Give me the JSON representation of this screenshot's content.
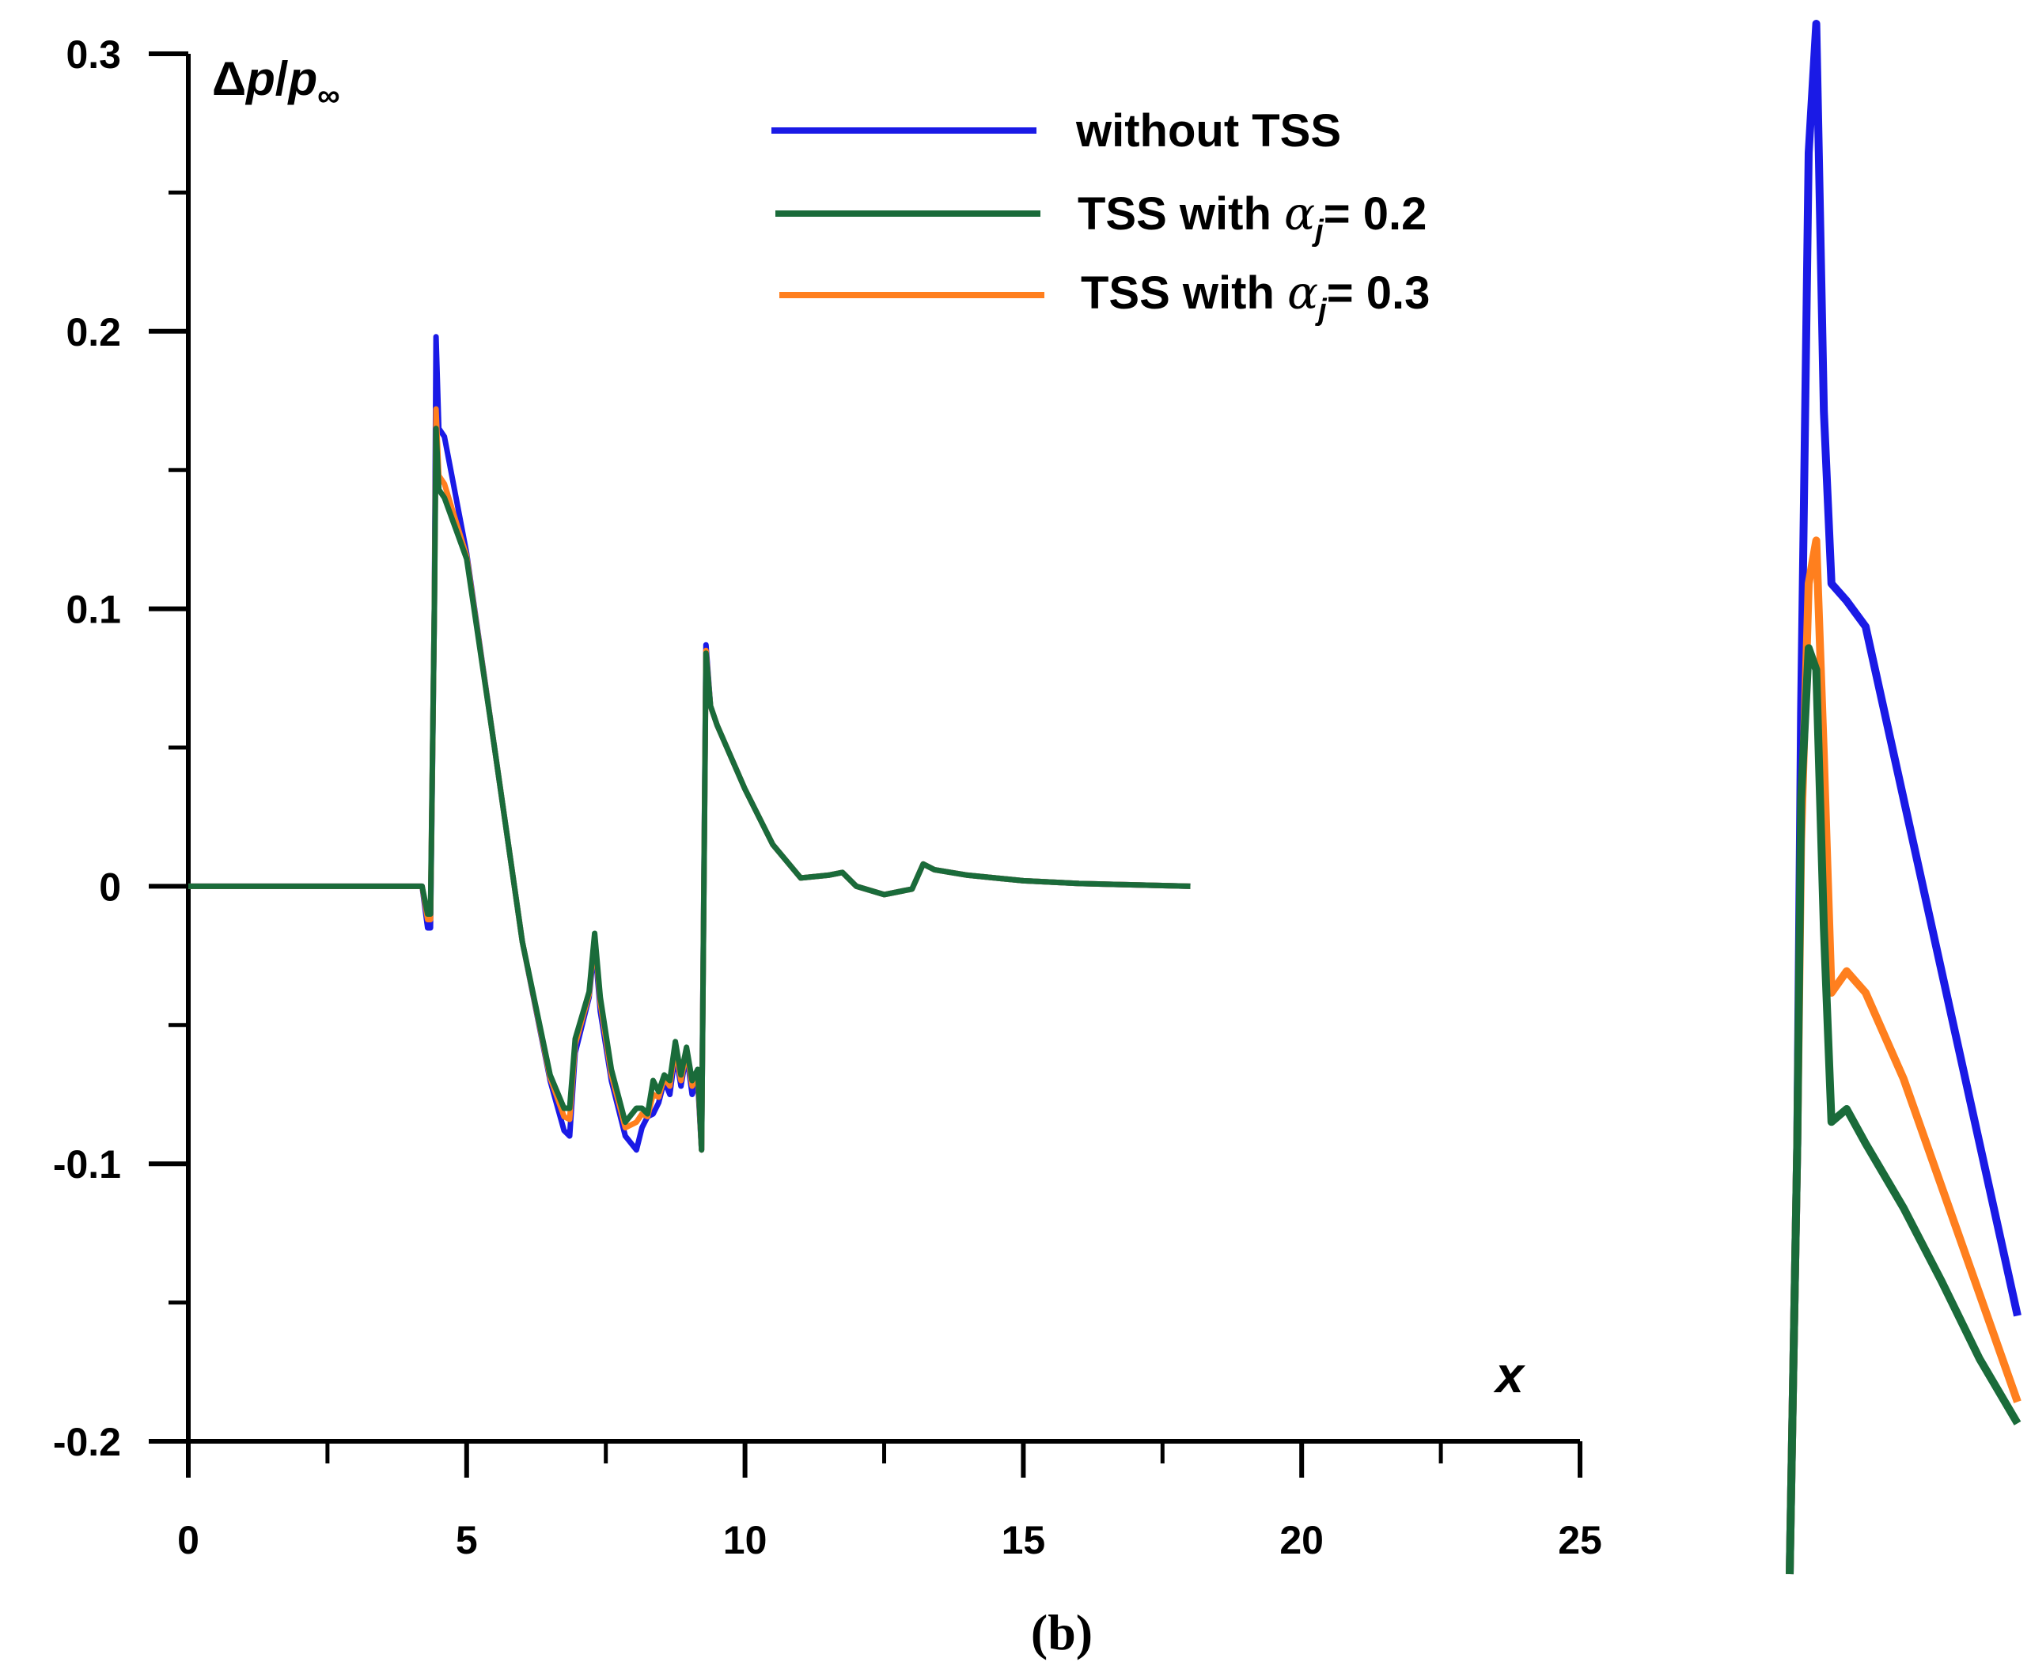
{
  "chart_data": {
    "type": "line",
    "title": "",
    "caption": "(b)",
    "ylabel": {
      "delta": "Δ",
      "p": "p",
      "slash": "/",
      "p2": "p",
      "sub": "∞"
    },
    "xlabel": "x",
    "xlim": [
      0,
      25
    ],
    "ylim": [
      -0.2,
      0.3
    ],
    "x_ticks": [
      0,
      5,
      10,
      15,
      20,
      25
    ],
    "x_tick_labels": [
      "0",
      "5",
      "10",
      "15",
      "20",
      "25"
    ],
    "y_ticks": [
      -0.2,
      -0.1,
      0,
      0.1,
      0.2,
      0.3
    ],
    "y_tick_labels": [
      "-0.2",
      "-0.1",
      "0",
      "0.1",
      "0.2",
      "0.3"
    ],
    "legend": {
      "placement": "top-center",
      "entries": [
        {
          "series": 0,
          "prefix": "without TSS",
          "alpha": "",
          "value": ""
        },
        {
          "series": 1,
          "prefix": "TSS with ",
          "alpha": "α",
          "sub": "j",
          "value": "= 0.2"
        },
        {
          "series": 2,
          "prefix": "TSS with ",
          "alpha": "α",
          "sub": "j",
          "value": "= 0.3"
        }
      ]
    },
    "series": [
      {
        "name": "without TSS",
        "color": "#1a1ae6",
        "x": [
          0,
          4.2,
          4.3,
          4.35,
          4.42,
          4.45,
          4.5,
          4.6,
          5.0,
          5.5,
          6.0,
          6.5,
          6.75,
          6.85,
          6.95,
          7.2,
          7.3,
          7.4,
          7.6,
          7.85,
          8.05,
          8.15,
          8.25,
          8.35,
          8.45,
          8.55,
          8.65,
          8.75,
          8.85,
          8.95,
          9.05,
          9.15,
          9.22,
          9.3,
          9.38,
          9.5,
          10.0,
          10.5,
          11.0,
          11.5,
          11.75,
          12.0,
          12.5,
          13.0,
          13.2,
          13.4,
          14.0,
          15.0,
          16.0,
          17.0,
          18.0
        ],
        "y": [
          0,
          0,
          -0.015,
          -0.015,
          0.1,
          0.198,
          0.165,
          0.162,
          0.12,
          0.05,
          -0.02,
          -0.07,
          -0.088,
          -0.09,
          -0.06,
          -0.04,
          -0.02,
          -0.045,
          -0.07,
          -0.09,
          -0.095,
          -0.087,
          -0.083,
          -0.082,
          -0.078,
          -0.07,
          -0.075,
          -0.06,
          -0.072,
          -0.06,
          -0.075,
          -0.07,
          -0.095,
          0.087,
          0.065,
          0.058,
          0.035,
          0.015,
          0.003,
          0.004,
          0.005,
          0.0,
          -0.003,
          -0.001,
          0.008,
          0.006,
          0.004,
          0.002,
          0.001,
          0.0005,
          0.0
        ]
      },
      {
        "name": "TSS with αj= 0.2",
        "color": "#1a6b3a",
        "x": [
          0,
          4.2,
          4.3,
          4.35,
          4.42,
          4.45,
          4.5,
          4.6,
          5.0,
          5.5,
          6.0,
          6.5,
          6.75,
          6.85,
          6.95,
          7.2,
          7.3,
          7.4,
          7.6,
          7.85,
          8.05,
          8.15,
          8.25,
          8.35,
          8.45,
          8.55,
          8.65,
          8.75,
          8.85,
          8.95,
          9.05,
          9.15,
          9.22,
          9.3,
          9.38,
          9.5,
          10.0,
          10.5,
          11.0,
          11.5,
          11.75,
          12.0,
          12.5,
          13.0,
          13.2,
          13.4,
          14.0,
          15.0,
          16.0,
          17.0,
          18.0
        ],
        "y": [
          0,
          0,
          -0.01,
          -0.01,
          0.1,
          0.165,
          0.143,
          0.14,
          0.118,
          0.05,
          -0.02,
          -0.068,
          -0.08,
          -0.08,
          -0.055,
          -0.038,
          -0.017,
          -0.04,
          -0.066,
          -0.085,
          -0.08,
          -0.08,
          -0.082,
          -0.07,
          -0.074,
          -0.068,
          -0.07,
          -0.056,
          -0.068,
          -0.058,
          -0.07,
          -0.066,
          -0.095,
          0.084,
          0.065,
          0.058,
          0.035,
          0.015,
          0.003,
          0.004,
          0.005,
          0.0,
          -0.003,
          -0.001,
          0.008,
          0.006,
          0.004,
          0.002,
          0.001,
          0.0005,
          0.0
        ]
      },
      {
        "name": "TSS with αj= 0.3",
        "color": "#ff7f1e",
        "x": [
          0,
          4.2,
          4.3,
          4.35,
          4.42,
          4.45,
          4.5,
          4.6,
          5.0,
          5.5,
          6.0,
          6.5,
          6.75,
          6.85,
          6.95,
          7.2,
          7.3,
          7.4,
          7.6,
          7.85,
          8.05,
          8.15,
          8.25,
          8.35,
          8.45,
          8.55,
          8.65,
          8.75,
          8.85,
          8.95,
          9.05,
          9.15,
          9.22,
          9.3,
          9.38,
          9.5,
          10.0,
          10.5,
          11.0,
          11.5,
          11.75,
          12.0,
          12.5,
          13.0,
          13.2,
          13.4,
          14.0,
          15.0,
          16.0,
          17.0,
          18.0
        ],
        "y": [
          0,
          0,
          -0.012,
          -0.012,
          0.1,
          0.172,
          0.148,
          0.145,
          0.119,
          0.05,
          -0.02,
          -0.069,
          -0.083,
          -0.084,
          -0.057,
          -0.039,
          -0.018,
          -0.042,
          -0.068,
          -0.087,
          -0.085,
          -0.082,
          -0.083,
          -0.075,
          -0.076,
          -0.069,
          -0.072,
          -0.058,
          -0.07,
          -0.059,
          -0.072,
          -0.068,
          -0.095,
          0.085,
          0.065,
          0.058,
          0.035,
          0.015,
          0.003,
          0.004,
          0.005,
          0.0,
          -0.003,
          -0.001,
          0.008,
          0.006,
          0.004,
          0.002,
          0.001,
          0.0005,
          0.0
        ]
      }
    ],
    "inset": {
      "description_free": true,
      "xlim": [
        4.4,
        5.0
      ],
      "ylim": [
        -0.05,
        0.31
      ],
      "series": [
        {
          "name": "without TSS",
          "x": [
            4.4,
            4.42,
            4.43,
            4.45,
            4.47,
            4.49,
            4.51,
            4.55,
            4.6,
            4.7,
            4.8,
            4.9,
            5.0
          ],
          "y": [
            -0.05,
            0.05,
            0.15,
            0.28,
            0.31,
            0.22,
            0.18,
            0.176,
            0.17,
            0.13,
            0.09,
            0.05,
            0.01
          ]
        },
        {
          "name": "TSS with αj= 0.3",
          "x": [
            4.4,
            4.42,
            4.43,
            4.45,
            4.47,
            4.49,
            4.51,
            4.55,
            4.6,
            4.7,
            4.8,
            4.9,
            5.0
          ],
          "y": [
            -0.05,
            0.05,
            0.12,
            0.18,
            0.19,
            0.14,
            0.085,
            0.09,
            0.085,
            0.065,
            0.04,
            0.015,
            -0.01
          ]
        },
        {
          "name": "TSS with αj= 0.2",
          "x": [
            4.4,
            4.42,
            4.43,
            4.45,
            4.47,
            4.49,
            4.51,
            4.55,
            4.6,
            4.7,
            4.8,
            4.9,
            5.0
          ],
          "y": [
            -0.05,
            0.05,
            0.13,
            0.165,
            0.16,
            0.1,
            0.055,
            0.058,
            0.05,
            0.035,
            0.018,
            0.0,
            -0.015
          ]
        }
      ]
    }
  }
}
